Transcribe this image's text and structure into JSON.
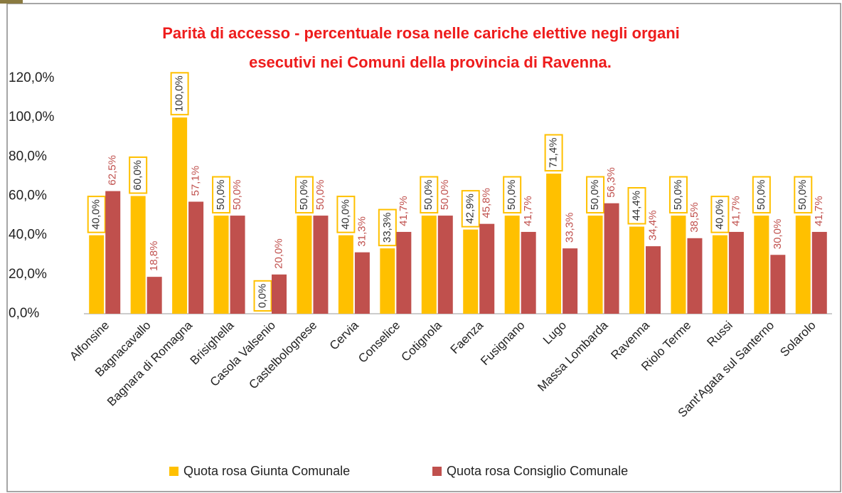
{
  "chart_data": {
    "type": "bar",
    "title": [
      "Parità di accesso - percentuale rosa nelle cariche elettive negli organi",
      "esecutivi nei Comuni della provincia di Ravenna."
    ],
    "categories": [
      "Alfonsine",
      "Bagnacavallo",
      "Bagnara di Romagna",
      "Brisighella",
      "Casola Valsenio",
      "Castelbolognese",
      "Cervia",
      "Conselice",
      "Cotignola",
      "Faenza",
      "Fusignano",
      "Lugo",
      "Massa Lombarda",
      "Ravenna",
      "Riolo Terme",
      "Russi",
      "Sant'Agata sul Santerno",
      "Solarolo"
    ],
    "series": [
      {
        "name": "Quota rosa Giunta Comunale",
        "color": "#ffc000",
        "values": [
          40,
          60,
          100,
          50,
          0,
          50,
          40,
          33.3,
          50,
          42.9,
          50,
          71.4,
          50,
          44.4,
          50,
          40,
          50,
          50
        ],
        "value_labels": [
          "40,0%",
          "60,0%",
          "100,0%",
          "50,0%",
          "0,0%",
          "50,0%",
          "40,0%",
          "33,3%",
          "50,0%",
          "42,9%",
          "50,0%",
          "71,4%",
          "50,0%",
          "44,4%",
          "50,0%",
          "40,0%",
          "50,0%",
          "50,0%"
        ]
      },
      {
        "name": "Quota rosa Consiglio Comunale",
        "color": "#c0504d",
        "values": [
          62.5,
          18.8,
          57.1,
          50,
          20,
          50,
          31.3,
          41.7,
          50,
          45.8,
          41.7,
          33.3,
          56.3,
          34.4,
          38.5,
          41.7,
          30,
          41.7
        ],
        "value_labels": [
          "62,5%",
          "18,8%",
          "57,1%",
          "50,0%",
          "20,0%",
          "50,0%",
          "31,3%",
          "41,7%",
          "50,0%",
          "45,8%",
          "41,7%",
          "33,3%",
          "56,3%",
          "34,4%",
          "38,5%",
          "41,7%",
          "30,0%",
          "41,7%"
        ]
      }
    ],
    "ylim": [
      0,
      120
    ],
    "yticks": [
      {
        "value": 0,
        "label": "0,0%"
      },
      {
        "value": 20,
        "label": "20,0%"
      },
      {
        "value": 40,
        "label": "40,0%"
      },
      {
        "value": 60,
        "label": "60,0%"
      },
      {
        "value": 80,
        "label": "80,0%"
      },
      {
        "value": 100,
        "label": "100,0%"
      },
      {
        "value": 120,
        "label": "120,0%"
      }
    ],
    "legend": "bottom"
  }
}
